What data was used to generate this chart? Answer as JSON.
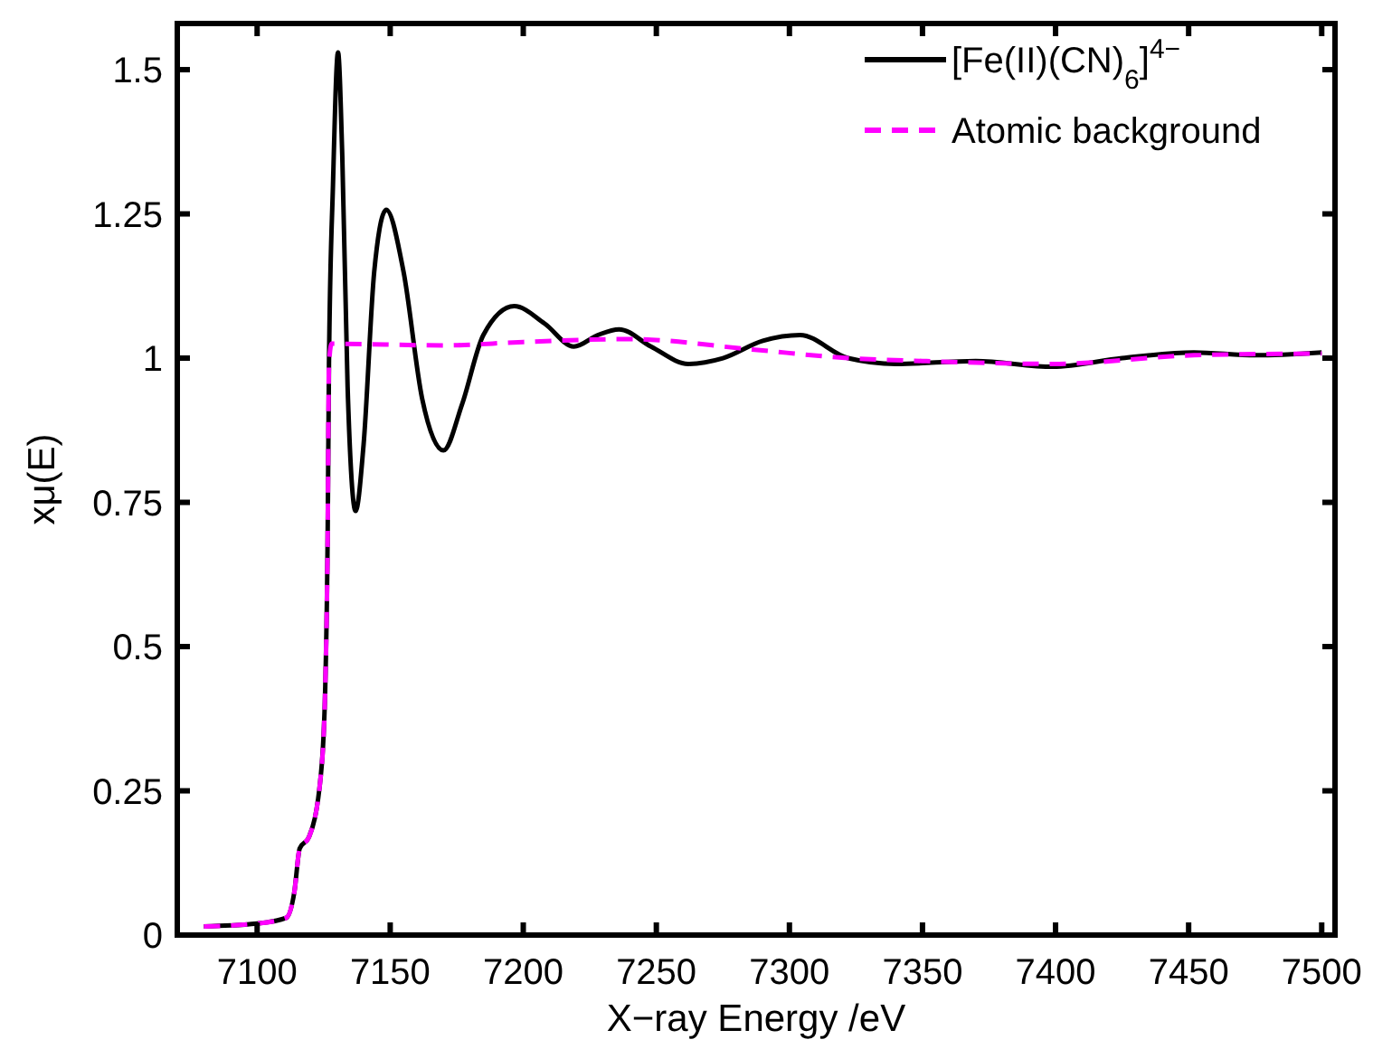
{
  "chart_data": {
    "type": "line",
    "xlabel": "X−ray Energy /eV",
    "ylabel": "xμ(E)",
    "xlim": [
      7070,
      7505
    ],
    "ylim": [
      0,
      1.58
    ],
    "xticks": [
      7100,
      7150,
      7200,
      7250,
      7300,
      7350,
      7400,
      7450,
      7500
    ],
    "yticks": [
      0,
      {
        "value": 0.25,
        "label": "0.25"
      },
      {
        "value": 0.5,
        "label": "0.5"
      },
      {
        "value": 0.75,
        "label": "0.75"
      },
      1,
      {
        "value": 1.25,
        "label": "1.25"
      },
      {
        "value": 1.5,
        "label": "1.5"
      }
    ],
    "grid": false,
    "legend": "top right",
    "marker": "none",
    "series": [
      {
        "name": "[Fe(II)(CN)$_{6}$]$^{4−}$",
        "color": "#000000",
        "line_style": "solid",
        "x": [
          7080,
          7100,
          7111,
          7114,
          7116,
          7119.5,
          7124,
          7125.6,
          7126.5,
          7127,
          7128.5,
          7130.4,
          7132,
          7134,
          7137,
          7140,
          7144,
          7148.5,
          7155,
          7162,
          7170,
          7177,
          7185,
          7196.6,
          7208,
          7219,
          7228,
          7236,
          7248,
          7262,
          7275,
          7290,
          7304,
          7322,
          7340,
          7370,
          7399,
          7425,
          7452,
          7475,
          7500
        ],
        "values": [
          0.015,
          0.02,
          0.03,
          0.075,
          0.15,
          0.17,
          0.28,
          0.43,
          0.69,
          0.99,
          1.3,
          1.53,
          1.35,
          0.95,
          0.735,
          0.85,
          1.15,
          1.257,
          1.15,
          0.93,
          0.84,
          0.92,
          1.04,
          1.09,
          1.06,
          1.02,
          1.04,
          1.05,
          1.02,
          0.99,
          1.0,
          1.03,
          1.04,
          1.0,
          0.99,
          0.995,
          0.985,
          1.0,
          1.01,
          1.005,
          1.01
        ]
      },
      {
        "name": "Atomic background",
        "color": "#ff00ff",
        "line_style": "dashed",
        "x": [
          7080,
          7100,
          7111,
          7114,
          7116,
          7119.5,
          7124,
          7125.6,
          7126.5,
          7127,
          7128,
          7170,
          7200,
          7240,
          7286,
          7322,
          7350,
          7399,
          7452,
          7500
        ],
        "values": [
          0.015,
          0.02,
          0.03,
          0.075,
          0.15,
          0.17,
          0.28,
          0.43,
          0.69,
          0.99,
          1.025,
          1.022,
          1.028,
          1.033,
          1.015,
          1.0,
          0.995,
          0.99,
          1.005,
          1.008
        ]
      }
    ]
  }
}
